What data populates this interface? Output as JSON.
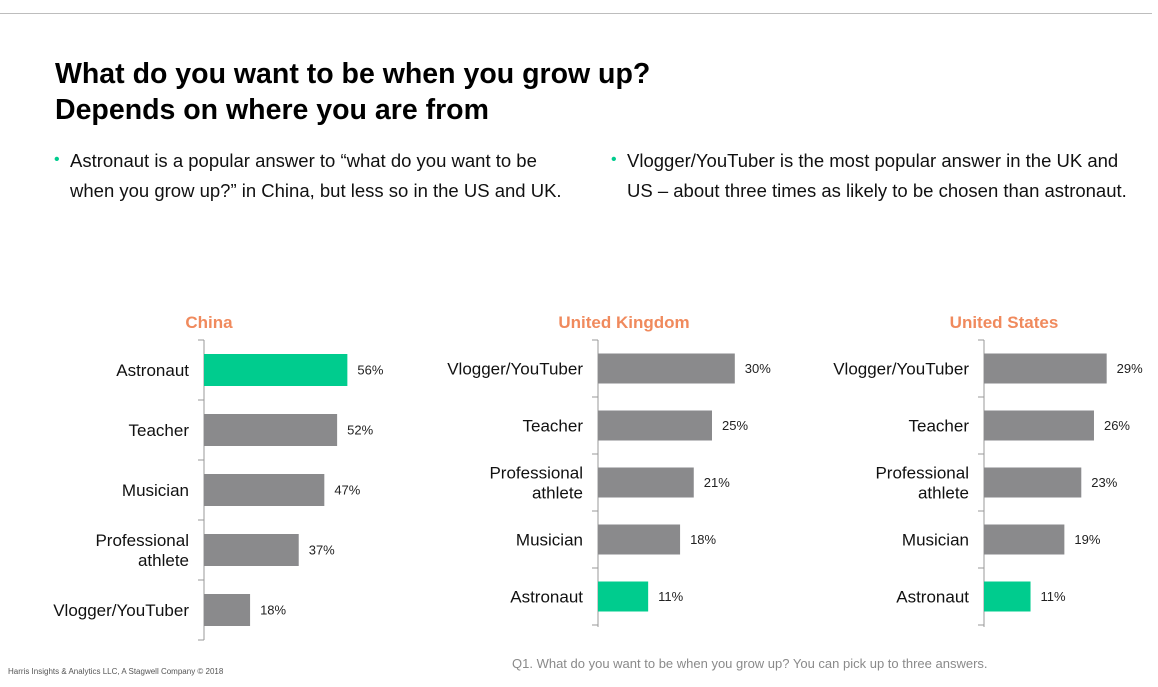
{
  "title": "What do you want to be when you grow up? Depends on where you are from",
  "bullets": [
    "Astronaut is a popular answer to “what do you want to be when you grow up?” in China, but less so in the US and UK.",
    "Vlogger/YouTuber is the most popular answer in the UK and US – about three times as likely to be chosen than astronaut."
  ],
  "bullet_glyph": "•",
  "colors": {
    "accent": "#00cc8e",
    "bar": "#8a8a8c",
    "chart_title": "#f08a5d"
  },
  "chart_data": [
    {
      "type": "bar",
      "orientation": "horizontal",
      "title": "China",
      "categories": [
        "Astronaut",
        "Teacher",
        "Musician",
        "Professional athlete",
        "Vlogger/YouTuber"
      ],
      "values": [
        56,
        52,
        47,
        37,
        18
      ],
      "labels": [
        "56%",
        "52%",
        "47%",
        "37%",
        "18%"
      ],
      "highlight": "Astronaut",
      "xlim": [
        0,
        100
      ]
    },
    {
      "type": "bar",
      "orientation": "horizontal",
      "title": "United Kingdom",
      "categories": [
        "Vlogger/YouTuber",
        "Teacher",
        "Professional athlete",
        "Musician",
        "Astronaut"
      ],
      "values": [
        30,
        25,
        21,
        18,
        11
      ],
      "labels": [
        "30%",
        "25%",
        "21%",
        "18%",
        "11%"
      ],
      "highlight": "Astronaut",
      "xlim": [
        0,
        100
      ]
    },
    {
      "type": "bar",
      "orientation": "horizontal",
      "title": "United States",
      "categories": [
        "Vlogger/YouTuber",
        "Teacher",
        "Professional athlete",
        "Musician",
        "Astronaut"
      ],
      "values": [
        29,
        26,
        23,
        19,
        11
      ],
      "labels": [
        "29%",
        "26%",
        "23%",
        "19%",
        "11%"
      ],
      "highlight": "Astronaut",
      "xlim": [
        0,
        100
      ]
    }
  ],
  "footer": {
    "copyright": "Harris Insights & Analytics LLC, A Stagwell Company © 2018",
    "question": "Q1. What do you want to be when you grow up? You can pick up to three answers."
  }
}
